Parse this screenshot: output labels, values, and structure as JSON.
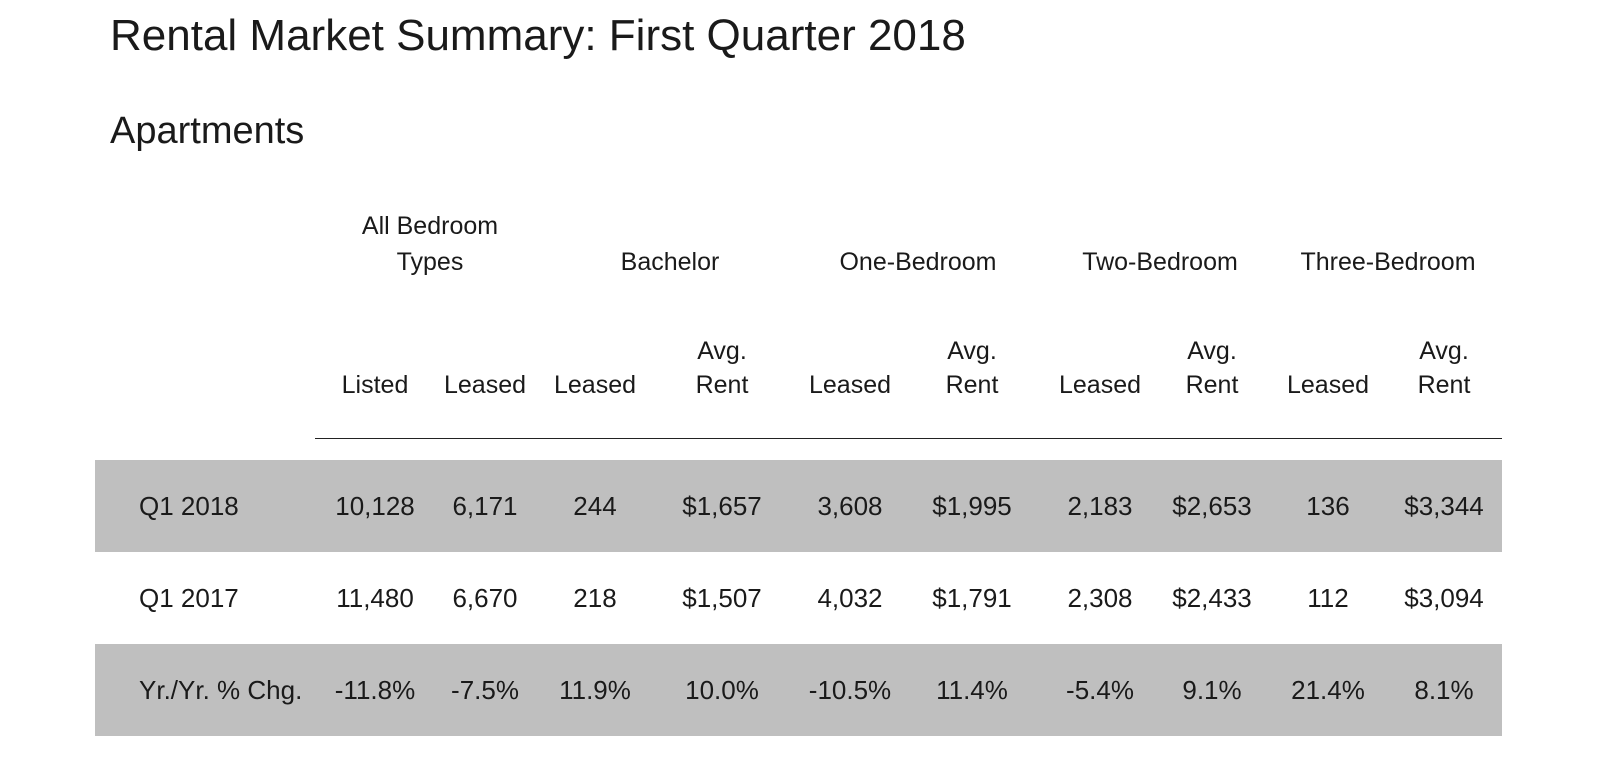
{
  "title": "Rental Market Summary: First Quarter 2018",
  "subtitle": "Apartments",
  "group_headers": [
    {
      "line1": "All Bedroom",
      "line2": "Types"
    },
    {
      "line1": "",
      "line2": "Bachelor"
    },
    {
      "line1": "",
      "line2": "One-Bedroom"
    },
    {
      "line1": "",
      "line2": "Two-Bedroom"
    },
    {
      "line1": "",
      "line2": "Three-Bedroom"
    }
  ],
  "column_headers": [
    {
      "line1": "",
      "line2": "Listed"
    },
    {
      "line1": "",
      "line2": "Leased"
    },
    {
      "line1": "",
      "line2": "Leased"
    },
    {
      "line1": "Avg.",
      "line2": "Rent"
    },
    {
      "line1": "",
      "line2": "Leased"
    },
    {
      "line1": "Avg.",
      "line2": "Rent"
    },
    {
      "line1": "",
      "line2": "Leased"
    },
    {
      "line1": "Avg.",
      "line2": "Rent"
    },
    {
      "line1": "",
      "line2": "Leased"
    },
    {
      "line1": "Avg.",
      "line2": "Rent"
    }
  ],
  "rows": [
    {
      "label": "Q1 2018",
      "cells": [
        "10,128",
        "6,171",
        "244",
        "$1,657",
        "3,608",
        "$1,995",
        "2,183",
        "$2,653",
        "136",
        "$3,344"
      ]
    },
    {
      "label": "Q1 2017",
      "cells": [
        "11,480",
        "6,670",
        "218",
        "$1,507",
        "4,032",
        "$1,791",
        "2,308",
        "$2,433",
        "112",
        "$3,094"
      ]
    },
    {
      "label": "Yr./Yr. % Chg.",
      "cells": [
        "-11.8%",
        "-7.5%",
        "11.9%",
        "10.0%",
        "-10.5%",
        "11.4%",
        "-5.4%",
        "9.1%",
        "21.4%",
        "8.1%"
      ]
    }
  ],
  "colors": {
    "shaded_row": "#bfbfbf",
    "text": "#1a1a1a",
    "rule": "#222222"
  }
}
